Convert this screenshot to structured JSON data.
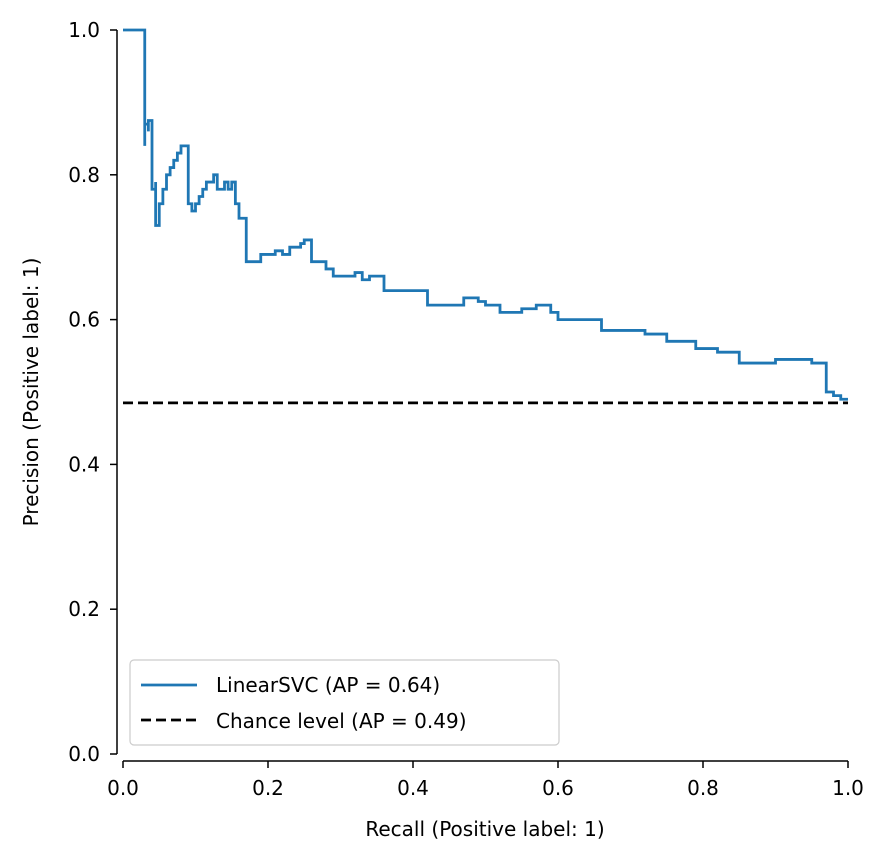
{
  "chart_data": {
    "type": "line",
    "title": "",
    "xlabel": "Recall (Positive label: 1)",
    "ylabel": "Precision (Positive label: 1)",
    "xlim": [
      0.0,
      1.0
    ],
    "ylim": [
      0.0,
      1.0
    ],
    "xticks": [
      0.0,
      0.2,
      0.4,
      0.6,
      0.8,
      1.0
    ],
    "xtick_labels": [
      "0.0",
      "0.2",
      "0.4",
      "0.6",
      "0.8",
      "1.0"
    ],
    "yticks": [
      0.0,
      0.2,
      0.4,
      0.6,
      0.8,
      1.0
    ],
    "ytick_labels": [
      "0.0",
      "0.2",
      "0.4",
      "0.6",
      "0.8",
      "1.0"
    ],
    "grid": false,
    "legend_position": "lower-left",
    "series": [
      {
        "name": "LinearSVC (AP = 0.64)",
        "color": "#1f77b4",
        "style": "steps-post",
        "points": [
          [
            0.0,
            1.0
          ],
          [
            0.01,
            1.0
          ],
          [
            0.02,
            1.0
          ],
          [
            0.03,
            1.0
          ],
          [
            0.03,
            0.84
          ],
          [
            0.03,
            0.87
          ],
          [
            0.035,
            0.86
          ],
          [
            0.035,
            0.875
          ],
          [
            0.04,
            0.87
          ],
          [
            0.04,
            0.78
          ],
          [
            0.045,
            0.79
          ],
          [
            0.045,
            0.73
          ],
          [
            0.05,
            0.76
          ],
          [
            0.055,
            0.78
          ],
          [
            0.06,
            0.8
          ],
          [
            0.065,
            0.81
          ],
          [
            0.07,
            0.82
          ],
          [
            0.075,
            0.83
          ],
          [
            0.08,
            0.84
          ],
          [
            0.085,
            0.84
          ],
          [
            0.09,
            0.84
          ],
          [
            0.09,
            0.76
          ],
          [
            0.095,
            0.75
          ],
          [
            0.1,
            0.76
          ],
          [
            0.105,
            0.77
          ],
          [
            0.11,
            0.78
          ],
          [
            0.115,
            0.79
          ],
          [
            0.12,
            0.79
          ],
          [
            0.125,
            0.8
          ],
          [
            0.13,
            0.78
          ],
          [
            0.14,
            0.79
          ],
          [
            0.145,
            0.78
          ],
          [
            0.15,
            0.79
          ],
          [
            0.155,
            0.76
          ],
          [
            0.16,
            0.74
          ],
          [
            0.165,
            0.74
          ],
          [
            0.17,
            0.68
          ],
          [
            0.18,
            0.68
          ],
          [
            0.19,
            0.69
          ],
          [
            0.2,
            0.69
          ],
          [
            0.21,
            0.695
          ],
          [
            0.22,
            0.69
          ],
          [
            0.23,
            0.7
          ],
          [
            0.24,
            0.7
          ],
          [
            0.245,
            0.705
          ],
          [
            0.25,
            0.71
          ],
          [
            0.255,
            0.71
          ],
          [
            0.26,
            0.68
          ],
          [
            0.27,
            0.68
          ],
          [
            0.28,
            0.67
          ],
          [
            0.29,
            0.66
          ],
          [
            0.3,
            0.66
          ],
          [
            0.32,
            0.665
          ],
          [
            0.33,
            0.655
          ],
          [
            0.34,
            0.66
          ],
          [
            0.35,
            0.66
          ],
          [
            0.36,
            0.64
          ],
          [
            0.38,
            0.64
          ],
          [
            0.4,
            0.64
          ],
          [
            0.42,
            0.62
          ],
          [
            0.45,
            0.62
          ],
          [
            0.47,
            0.63
          ],
          [
            0.49,
            0.625
          ],
          [
            0.5,
            0.62
          ],
          [
            0.52,
            0.61
          ],
          [
            0.55,
            0.615
          ],
          [
            0.57,
            0.62
          ],
          [
            0.59,
            0.61
          ],
          [
            0.6,
            0.6
          ],
          [
            0.62,
            0.6
          ],
          [
            0.64,
            0.6
          ],
          [
            0.66,
            0.585
          ],
          [
            0.69,
            0.585
          ],
          [
            0.72,
            0.58
          ],
          [
            0.74,
            0.58
          ],
          [
            0.75,
            0.57
          ],
          [
            0.78,
            0.57
          ],
          [
            0.79,
            0.56
          ],
          [
            0.81,
            0.56
          ],
          [
            0.82,
            0.555
          ],
          [
            0.84,
            0.555
          ],
          [
            0.85,
            0.54
          ],
          [
            0.87,
            0.54
          ],
          [
            0.89,
            0.54
          ],
          [
            0.9,
            0.545
          ],
          [
            0.92,
            0.545
          ],
          [
            0.95,
            0.54
          ],
          [
            0.97,
            0.53
          ],
          [
            0.97,
            0.5
          ],
          [
            0.98,
            0.495
          ],
          [
            0.99,
            0.49
          ],
          [
            1.0,
            0.49
          ]
        ]
      },
      {
        "name": "Chance level (AP = 0.49)",
        "color": "#000000",
        "style": "dashed",
        "points": [
          [
            0.0,
            0.485
          ],
          [
            1.0,
            0.485
          ]
        ]
      }
    ]
  }
}
